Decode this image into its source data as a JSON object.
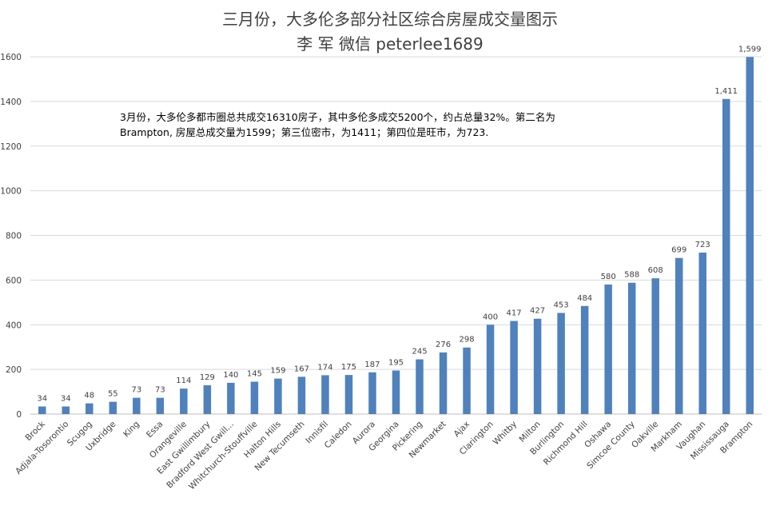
{
  "chart_data": {
    "type": "bar",
    "title": "三月份，大多伦多部分社区综合房屋成交量图示",
    "subtitle": "李 军  微信 peterlee1689",
    "annotation_lines": [
      "3月份，大多伦多都市圈总共成交16310房子，其中多伦多成交5200个，约占总量32%。第二名为",
      "Brampton, 房屋总成交量为1599；第三位密市，为1411；第四位是旺市，为723."
    ],
    "categories": [
      "Brock",
      "Adjala-Tosorontio",
      "Scugog",
      "Uxbridge",
      "King",
      "Essa",
      "Orangeville",
      "East Gwillimbury",
      "Bradford West Gwill...",
      "Whitchurch-Stouffville",
      "Halton Hills",
      "New Tecumseth",
      "Innisfil",
      "Caledon",
      "Aurora",
      "Georgina",
      "Pickering",
      "Newmarket",
      "Ajax",
      "Clarington",
      "Whitby",
      "Milton",
      "Burlington",
      "Richmond Hill",
      "Oshawa",
      "Simcoe County",
      "Oakville",
      "Markham",
      "Vaughan",
      "Mississauga",
      "Brampton"
    ],
    "values": [
      34,
      34,
      48,
      55,
      73,
      73,
      114,
      129,
      140,
      145,
      159,
      167,
      174,
      175,
      187,
      195,
      245,
      276,
      298,
      400,
      417,
      427,
      453,
      484,
      580,
      588,
      608,
      699,
      723,
      1411,
      1599
    ],
    "data_labels": [
      "34",
      "34",
      "48",
      "55",
      "73",
      "73",
      "114",
      "129",
      "140",
      "145",
      "159",
      "167",
      "174",
      "175",
      "187",
      "195",
      "245",
      "276",
      "298",
      "400",
      "417",
      "427",
      "453",
      "484",
      "580",
      "588",
      "608",
      "699",
      "723",
      "1,411",
      "1,599"
    ],
    "yticks": [
      "0",
      "200",
      "400",
      "600",
      "800",
      "1000",
      "1200",
      "1400",
      "1600"
    ],
    "ylim": [
      0,
      1600
    ],
    "grid": true,
    "legend": "none",
    "bar_color": "#4f81bd",
    "grid_color": "#d9d9d9"
  }
}
